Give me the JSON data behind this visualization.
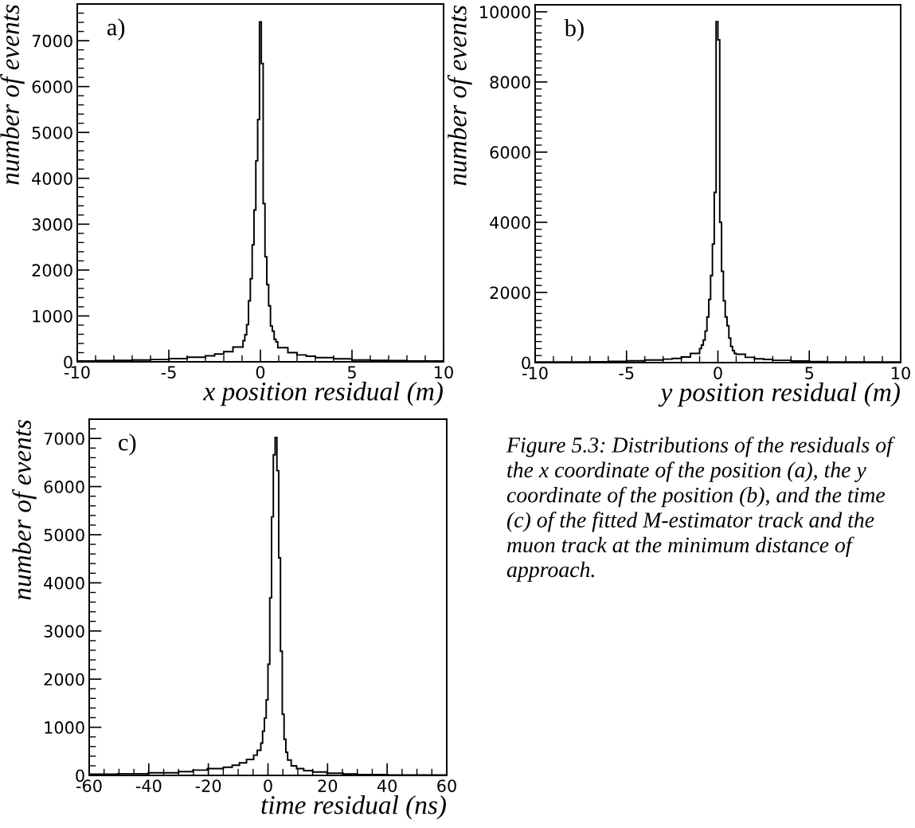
{
  "chart_data": [
    {
      "type": "histogram",
      "title": "a)",
      "xlabel": "x position residual (m)",
      "ylabel": "number of events",
      "xlim": [
        -10,
        10
      ],
      "ylim": [
        0,
        7800
      ],
      "xticks": [
        -10,
        -5,
        0,
        5,
        10
      ],
      "yticks": [
        0,
        1000,
        2000,
        3000,
        4000,
        5000,
        6000,
        7000
      ],
      "grid": false,
      "legend": false,
      "color": "#000000",
      "bins": [
        -10,
        -9,
        -8,
        -7,
        -6,
        -5,
        -4,
        -3,
        -2.5,
        -2,
        -1.5,
        -0.95,
        -0.85,
        -0.75,
        -0.65,
        -0.55,
        -0.45,
        -0.35,
        -0.25,
        -0.15,
        -0.05,
        0.05,
        0.15,
        0.25,
        0.35,
        0.45,
        0.55,
        0.65,
        0.75,
        0.85,
        0.95,
        1.5,
        2,
        2.5,
        3,
        4,
        5,
        6,
        7,
        8,
        9,
        10
      ],
      "values": [
        20,
        25,
        30,
        38,
        50,
        70,
        100,
        130,
        170,
        220,
        320,
        460,
        590,
        810,
        1330,
        1810,
        2550,
        3310,
        4380,
        5280,
        7410,
        6500,
        3450,
        2290,
        1680,
        1220,
        780,
        670,
        490,
        435,
        310,
        200,
        150,
        120,
        90,
        65,
        40,
        30,
        25,
        20,
        20
      ]
    },
    {
      "type": "histogram",
      "title": "b)",
      "xlabel": "y position residual (m)",
      "ylabel": "number of events",
      "xlim": [
        -10,
        10
      ],
      "ylim": [
        0,
        10200
      ],
      "xticks": [
        -10,
        -5,
        0,
        5,
        10
      ],
      "yticks": [
        0,
        2000,
        4000,
        6000,
        8000,
        10000
      ],
      "grid": false,
      "legend": false,
      "color": "#000000",
      "bins": [
        -10,
        -9,
        -8,
        -7,
        -6,
        -5,
        -4,
        -3,
        -2.5,
        -2,
        -1.5,
        -1,
        -0.9,
        -0.8,
        -0.7,
        -0.6,
        -0.5,
        -0.4,
        -0.3,
        -0.2,
        -0.1,
        0,
        0.1,
        0.2,
        0.3,
        0.4,
        0.5,
        0.6,
        0.7,
        0.8,
        0.9,
        1,
        1.5,
        2,
        2.5,
        3,
        4,
        5,
        6,
        7,
        8,
        9,
        10
      ],
      "values": [
        15,
        15,
        20,
        25,
        35,
        50,
        75,
        100,
        120,
        160,
        260,
        400,
        500,
        640,
        900,
        1300,
        1800,
        2480,
        3380,
        4850,
        9720,
        9200,
        4000,
        2600,
        1760,
        1300,
        1050,
        700,
        460,
        340,
        260,
        240,
        150,
        110,
        90,
        65,
        45,
        30,
        20,
        15,
        15,
        15
      ]
    },
    {
      "type": "histogram",
      "title": "c)",
      "xlabel": "time residual (ns)",
      "ylabel": "number of events",
      "xlim": [
        -60,
        60
      ],
      "ylim": [
        0,
        7400
      ],
      "xticks": [
        -60,
        -40,
        -20,
        0,
        20,
        40,
        60
      ],
      "yticks": [
        0,
        1000,
        2000,
        3000,
        4000,
        5000,
        6000,
        7000
      ],
      "grid": false,
      "legend": false,
      "color": "#000000",
      "bins": [
        -60,
        -50.4,
        -40.2,
        -30,
        -25.2,
        -20.4,
        -15,
        -12,
        -9.6,
        -7.2,
        -4.8,
        -3.6,
        -2.4,
        -1.8,
        -1.2,
        -0.6,
        0,
        0.6,
        1.2,
        1.8,
        2.4,
        3.0,
        3.6,
        4.2,
        4.8,
        5.4,
        6.0,
        6.6,
        7.8,
        9.6,
        12,
        15,
        19.8,
        25.2,
        30,
        40.2,
        50.4,
        60
      ],
      "values": [
        25,
        35,
        55,
        80,
        110,
        140,
        170,
        210,
        260,
        330,
        420,
        520,
        670,
        920,
        1190,
        1570,
        2310,
        3690,
        5370,
        6660,
        7020,
        6330,
        4520,
        2580,
        1270,
        750,
        480,
        320,
        200,
        140,
        100,
        70,
        45,
        30,
        15,
        10,
        10
      ],
      "annotations": [
        "Figure 5.3: Distributions of the residuals of the x coordinate of the position (a), the y coordinate of the position (b), and the time (c) of the fitted M-estimator track and the muon track at the minimum distance of approach."
      ]
    }
  ]
}
